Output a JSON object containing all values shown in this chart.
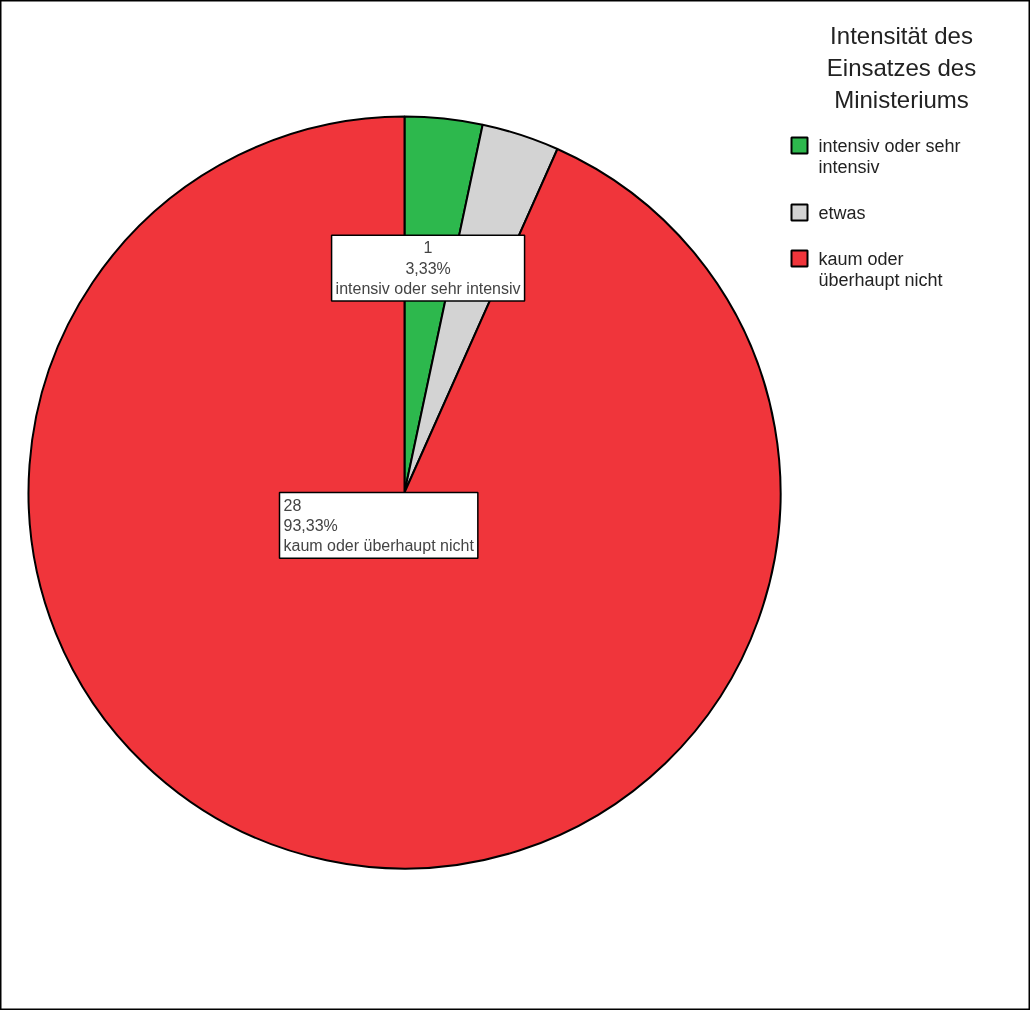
{
  "chart_data": {
    "type": "pie",
    "legend_title": "Intensität des Einsatzes des Ministeriums",
    "legend": "top right",
    "categories": [
      "intensiv oder sehr intensiv",
      "etwas",
      "kaum oder überhaupt nicht"
    ],
    "values": [
      1,
      1,
      28
    ],
    "colors": [
      "#2db84d",
      "#d3d3d3",
      "#f0353b"
    ],
    "value_labels": [
      "1\n3,33%\nintensiv oder sehr intensiv",
      null,
      "28\n93,33%\nkaum oder überhaupt nicht"
    ]
  }
}
